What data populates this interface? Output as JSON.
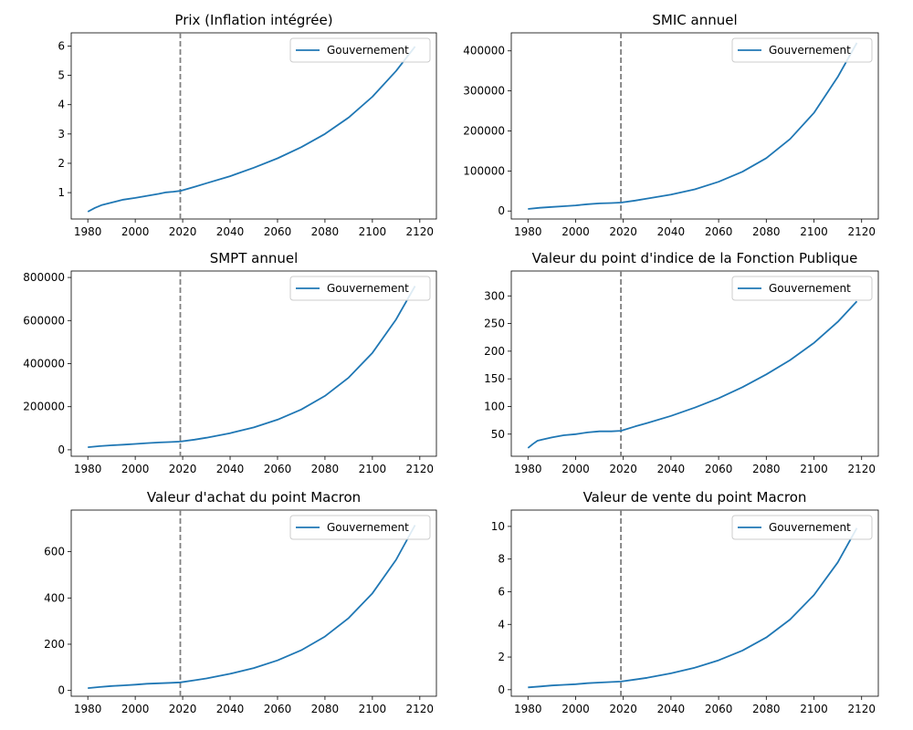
{
  "chart_data": [
    {
      "type": "line",
      "title": "Prix (Inflation intégrée)",
      "xlim": [
        1973,
        2127
      ],
      "ylim": [
        0.1,
        6.45
      ],
      "xticks": [
        1980,
        2000,
        2020,
        2040,
        2060,
        2080,
        2100,
        2120
      ],
      "yticks": [
        1,
        2,
        3,
        4,
        5,
        6
      ],
      "ytick_labels": [
        "1",
        "2",
        "3",
        "4",
        "5",
        "6"
      ],
      "vline": 2019,
      "legend_location": "upper right",
      "series": [
        {
          "name": "Gouvernement",
          "x": [
            1980,
            1983,
            1986,
            1990,
            1995,
            2000,
            2005,
            2010,
            2013,
            2016,
            2019,
            2025,
            2030,
            2040,
            2050,
            2060,
            2070,
            2080,
            2090,
            2100,
            2110,
            2118
          ],
          "y": [
            0.35,
            0.48,
            0.58,
            0.66,
            0.76,
            0.82,
            0.89,
            0.96,
            1.01,
            1.03,
            1.06,
            1.2,
            1.32,
            1.56,
            1.85,
            2.17,
            2.55,
            3.0,
            3.56,
            4.27,
            5.15,
            5.98
          ]
        }
      ]
    },
    {
      "type": "line",
      "title": "SMIC annuel",
      "xlim": [
        1973,
        2127
      ],
      "ylim": [
        -20000,
        445000
      ],
      "xticks": [
        1980,
        2000,
        2020,
        2040,
        2060,
        2080,
        2100,
        2120
      ],
      "yticks": [
        0,
        100000,
        200000,
        300000,
        400000
      ],
      "ytick_labels": [
        "0",
        "100000",
        "200000",
        "300000",
        "400000"
      ],
      "vline": 2019,
      "legend_location": "upper right",
      "series": [
        {
          "name": "Gouvernement",
          "x": [
            1980,
            1985,
            1990,
            1995,
            2000,
            2005,
            2010,
            2015,
            2019,
            2025,
            2030,
            2040,
            2050,
            2060,
            2070,
            2080,
            2090,
            2100,
            2110,
            2118
          ],
          "y": [
            5000,
            8000,
            10000,
            12000,
            14000,
            17000,
            19000,
            20000,
            21000,
            26000,
            31000,
            41000,
            54000,
            73000,
            98000,
            132000,
            180000,
            245000,
            335000,
            420000
          ]
        }
      ]
    },
    {
      "type": "line",
      "title": "SMPT annuel",
      "xlim": [
        1973,
        2127
      ],
      "ylim": [
        -30000,
        830000
      ],
      "xticks": [
        1980,
        2000,
        2020,
        2040,
        2060,
        2080,
        2100,
        2120
      ],
      "yticks": [
        0,
        200000,
        400000,
        600000,
        800000
      ],
      "ytick_labels": [
        "0",
        "200000",
        "400000",
        "600000",
        "800000"
      ],
      "vline": 2019,
      "legend_location": "upper right",
      "series": [
        {
          "name": "Gouvernement",
          "x": [
            1980,
            1985,
            1990,
            1995,
            2000,
            2005,
            2010,
            2015,
            2019,
            2025,
            2030,
            2040,
            2050,
            2060,
            2070,
            2080,
            2090,
            2100,
            2110,
            2118
          ],
          "y": [
            12000,
            17000,
            21000,
            24000,
            27000,
            31000,
            34000,
            36000,
            38000,
            47000,
            56000,
            77000,
            104000,
            140000,
            187000,
            250000,
            335000,
            450000,
            605000,
            760000
          ]
        }
      ]
    },
    {
      "type": "line",
      "title": "Valeur du point d'indice de la Fonction Publique",
      "xlim": [
        1973,
        2127
      ],
      "ylim": [
        10,
        345
      ],
      "xticks": [
        1980,
        2000,
        2020,
        2040,
        2060,
        2080,
        2100,
        2120
      ],
      "yticks": [
        50,
        100,
        150,
        200,
        250,
        300
      ],
      "ytick_labels": [
        "50",
        "100",
        "150",
        "200",
        "250",
        "300"
      ],
      "vline": 2019,
      "legend_location": "upper right",
      "series": [
        {
          "name": "Gouvernement",
          "x": [
            1980,
            1982,
            1984,
            1986,
            1990,
            1995,
            2000,
            2005,
            2010,
            2015,
            2019,
            2025,
            2030,
            2040,
            2050,
            2060,
            2070,
            2080,
            2090,
            2100,
            2110,
            2118
          ],
          "y": [
            25,
            32,
            38,
            40,
            44,
            48,
            50,
            53,
            55,
            55,
            56,
            64,
            70,
            83,
            98,
            115,
            135,
            158,
            184,
            215,
            253,
            290
          ]
        }
      ]
    },
    {
      "type": "line",
      "title": "Valeur d'achat du point Macron",
      "xlim": [
        1973,
        2127
      ],
      "ylim": [
        -25,
        780
      ],
      "xticks": [
        1980,
        2000,
        2020,
        2040,
        2060,
        2080,
        2100,
        2120
      ],
      "yticks": [
        0,
        200,
        400,
        600
      ],
      "ytick_labels": [
        "0",
        "200",
        "400",
        "600"
      ],
      "vline": 2019,
      "legend_location": "upper right",
      "series": [
        {
          "name": "Gouvernement",
          "x": [
            1980,
            1985,
            1990,
            1995,
            2000,
            2005,
            2010,
            2015,
            2019,
            2025,
            2030,
            2040,
            2050,
            2060,
            2070,
            2080,
            2090,
            2100,
            2110,
            2118
          ],
          "y": [
            10,
            15,
            19,
            22,
            25,
            29,
            31,
            33,
            35,
            44,
            52,
            72,
            97,
            130,
            174,
            233,
            313,
            420,
            565,
            715
          ]
        }
      ]
    },
    {
      "type": "line",
      "title": "Valeur de vente du point Macron",
      "xlim": [
        1973,
        2127
      ],
      "ylim": [
        -0.4,
        11
      ],
      "xticks": [
        1980,
        2000,
        2020,
        2040,
        2060,
        2080,
        2100,
        2120
      ],
      "yticks": [
        0,
        2,
        4,
        6,
        8,
        10
      ],
      "ytick_labels": [
        "0",
        "2",
        "4",
        "6",
        "8",
        "10"
      ],
      "vline": 2019,
      "legend_location": "upper right",
      "series": [
        {
          "name": "Gouvernement",
          "x": [
            1980,
            1985,
            1990,
            1995,
            2000,
            2005,
            2010,
            2015,
            2019,
            2025,
            2030,
            2040,
            2050,
            2060,
            2070,
            2080,
            2090,
            2100,
            2110,
            2118
          ],
          "y": [
            0.14,
            0.2,
            0.26,
            0.3,
            0.34,
            0.4,
            0.44,
            0.47,
            0.5,
            0.62,
            0.73,
            1.0,
            1.35,
            1.8,
            2.4,
            3.2,
            4.3,
            5.8,
            7.8,
            9.9
          ]
        }
      ]
    }
  ],
  "colors": {
    "series": "#1f77b4",
    "vline": "#808080"
  }
}
